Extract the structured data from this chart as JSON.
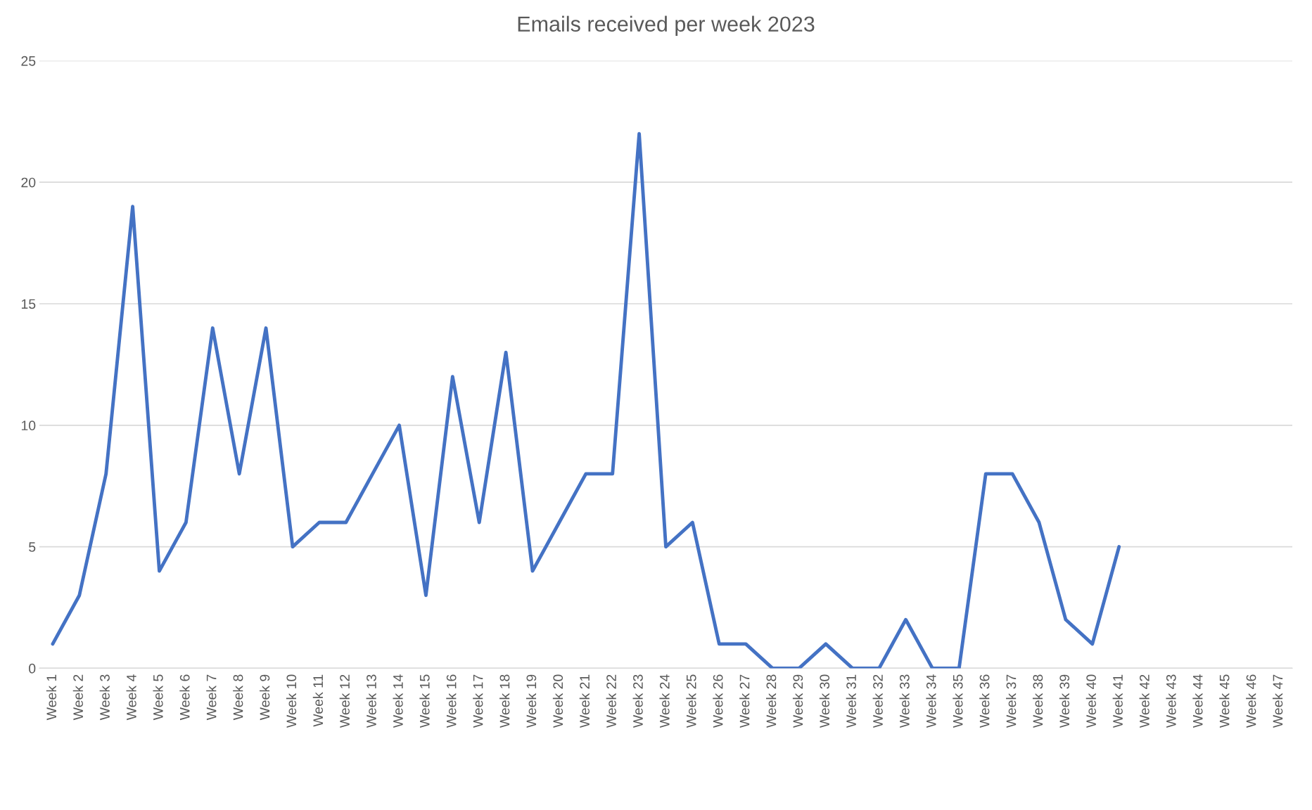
{
  "chart_data": {
    "type": "line",
    "title": "Emails received per week 2023",
    "categories": [
      "Week 1",
      "Week 2",
      "Week 3",
      "Week 4",
      "Week 5",
      "Week 6",
      "Week 7",
      "Week 8",
      "Week 9",
      "Week 10",
      "Week 11",
      "Week 12",
      "Week 13",
      "Week 14",
      "Week 15",
      "Week 16",
      "Week 17",
      "Week 18",
      "Week 19",
      "Week 20",
      "Week 21",
      "Week 22",
      "Week 23",
      "Week 24",
      "Week 25",
      "Week 26",
      "Week 27",
      "Week 28",
      "Week 29",
      "Week 30",
      "Week 31",
      "Week 32",
      "Week 33",
      "Week 34",
      "Week 35",
      "Week 36",
      "Week 37",
      "Week 38",
      "Week 39",
      "Week 40",
      "Week 41",
      "Week 42",
      "Week 43",
      "Week 44",
      "Week 45",
      "Week 46",
      "Week 47"
    ],
    "series": [
      {
        "color": "#4472c4",
        "values": [
          1,
          3,
          8,
          19,
          4,
          6,
          14,
          8,
          14,
          5,
          6,
          6,
          8,
          10,
          3,
          12,
          6,
          13,
          4,
          6,
          8,
          8,
          22,
          5,
          6,
          1,
          1,
          0,
          0,
          1,
          0,
          0,
          2,
          0,
          0,
          8,
          8,
          6,
          2,
          1,
          5,
          null,
          null,
          null,
          null,
          null,
          null
        ]
      }
    ],
    "ylim": [
      0,
      25
    ],
    "yticks": [
      0,
      5,
      10,
      15,
      20,
      25
    ],
    "grid": "y",
    "legend": false,
    "marker": "none",
    "line_style": "solid"
  }
}
